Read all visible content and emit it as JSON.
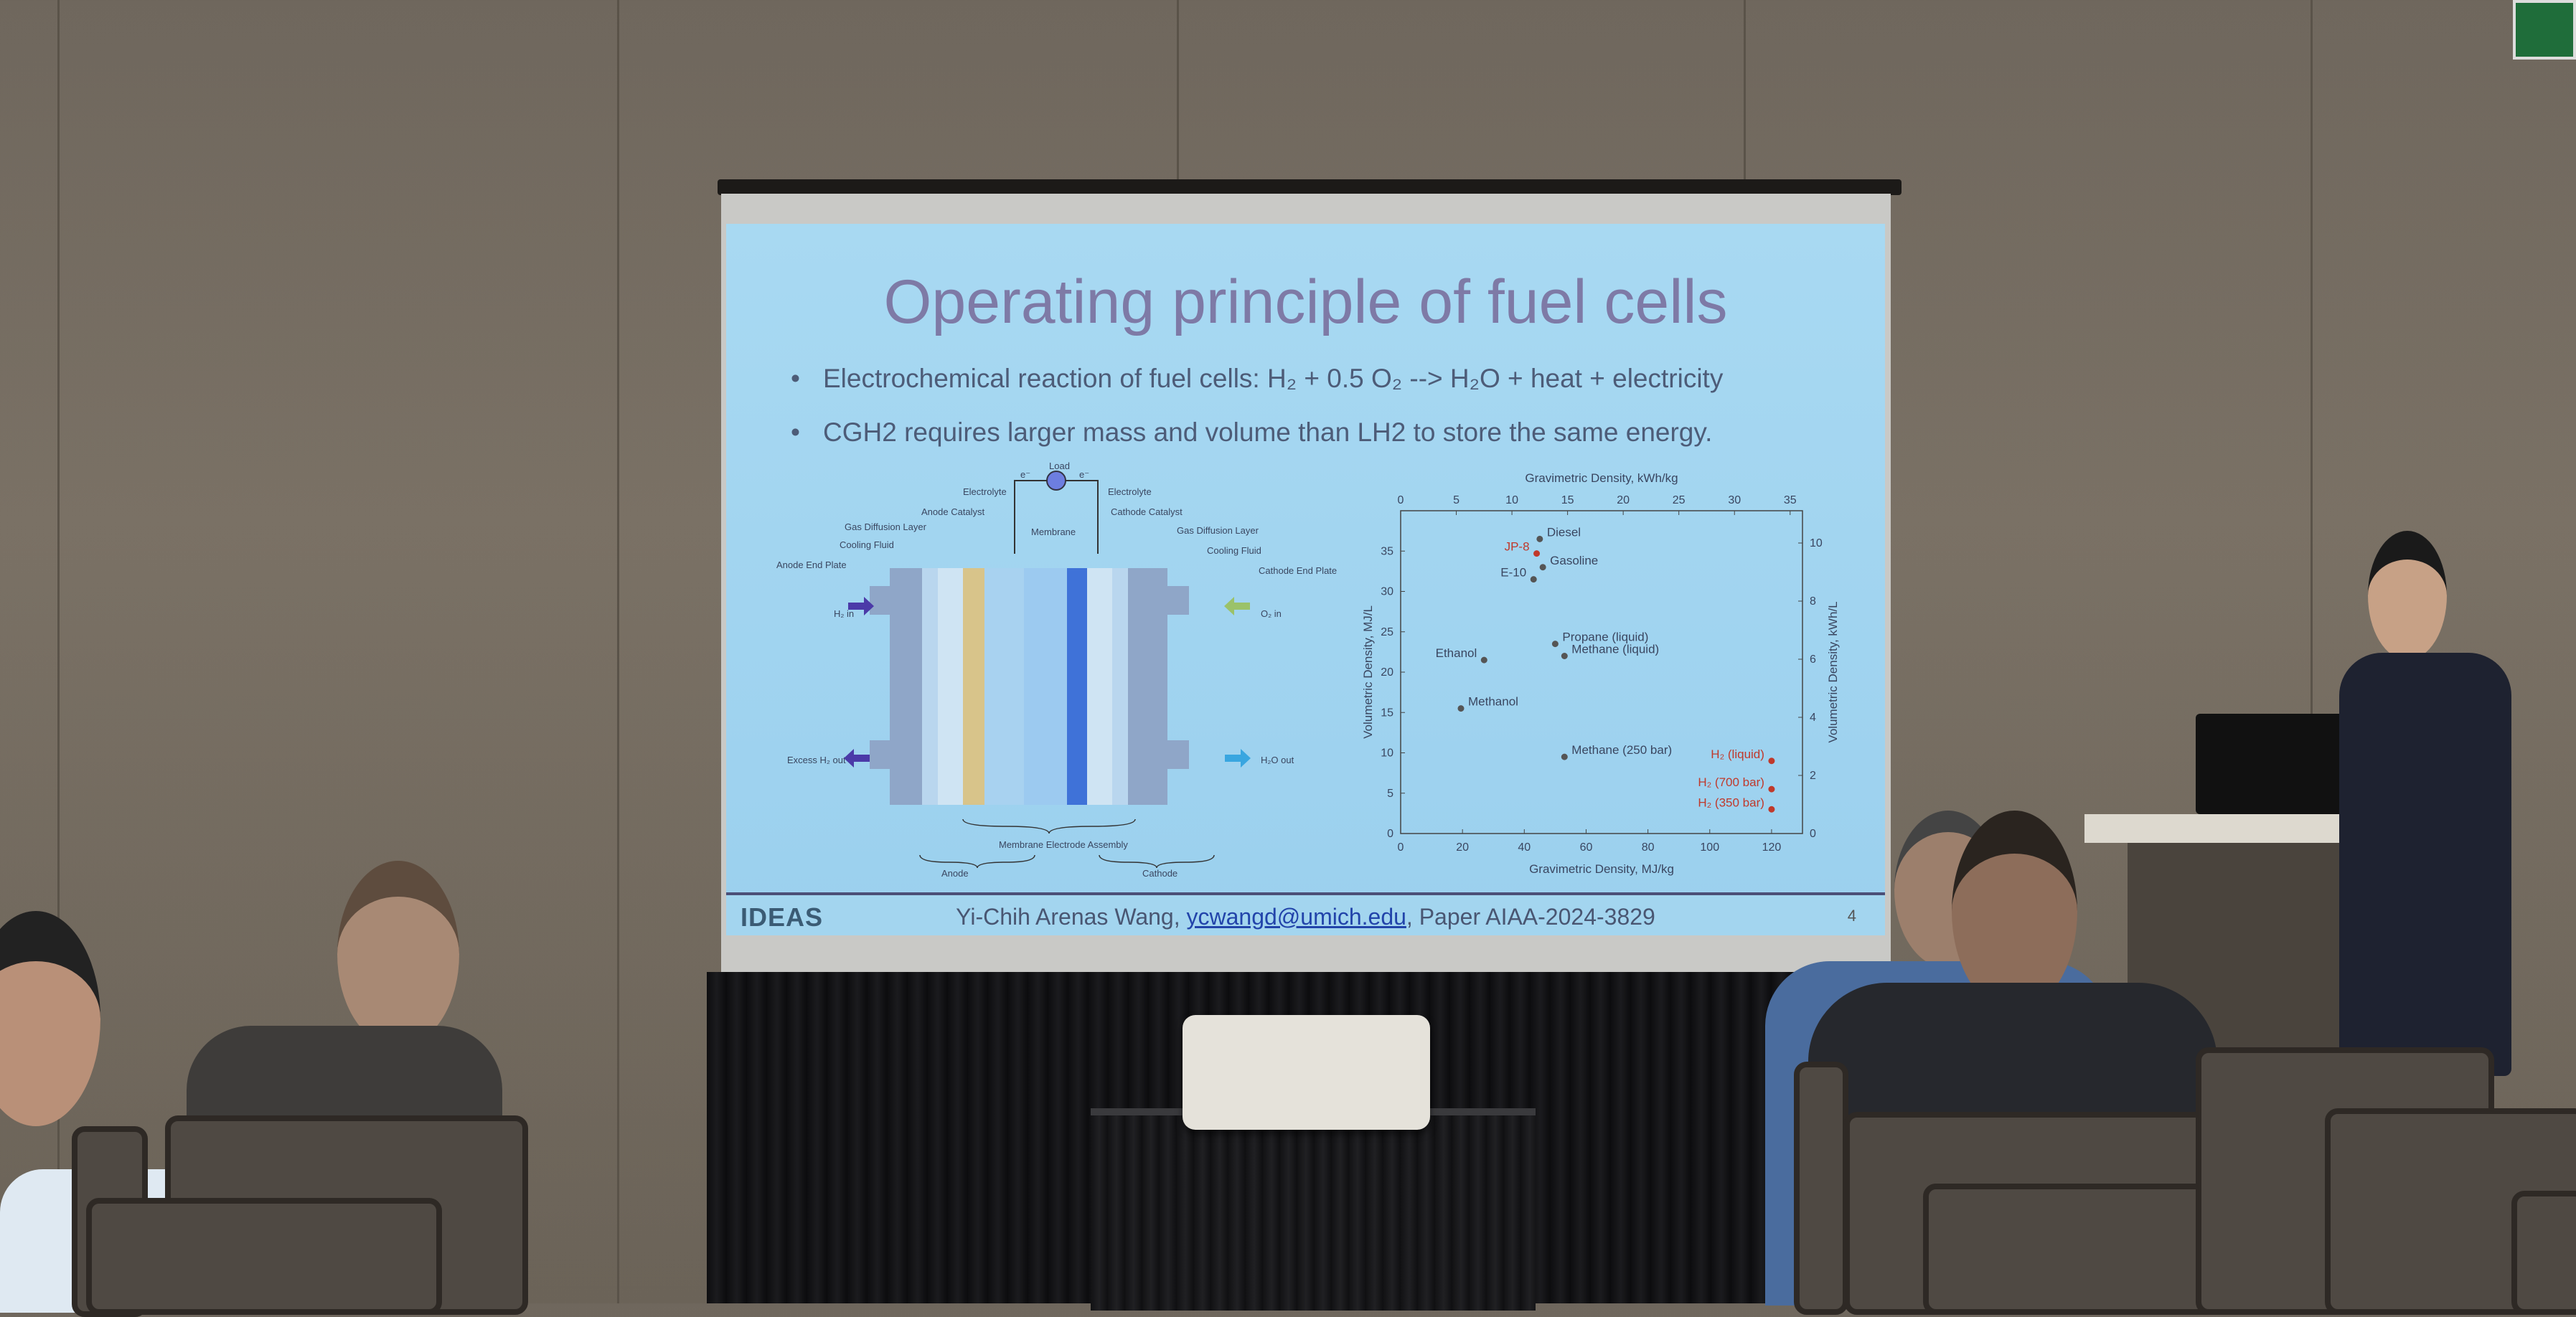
{
  "slide": {
    "title": "Operating principle of fuel cells",
    "bullet1": "Electrochemical reaction of fuel cells: H₂ + 0.5 O₂ --> H₂O + heat + electricity",
    "bullet2": "CGH2 requires larger mass and volume than LH2 to store the same energy.",
    "bullet_marker": "•"
  },
  "fuel_cell_diagram": {
    "labels": {
      "load": "Load",
      "electrolyte_left": "Electrolyte",
      "electrolyte_right": "Electrolyte",
      "anode_catalyst": "Anode Catalyst",
      "membrane": "Membrane",
      "cathode_catalyst": "Cathode Catalyst",
      "gdl_left": "Gas Diffusion Layer",
      "gdl_right": "Gas Diffusion Layer",
      "cooling_left": "Cooling Fluid",
      "cooling_right": "Cooling Fluid",
      "anode_end_plate": "Anode End Plate",
      "cathode_end_plate": "Cathode End Plate",
      "h2_in": "H₂ in",
      "o2_in": "O₂ in",
      "excess_h2_out": "Excess H₂ out",
      "h2o_out": "H₂O out",
      "mea": "Membrane Electrode Assembly",
      "anode": "Anode",
      "cathode": "Cathode",
      "electron_left": "e⁻",
      "electron_right": "e⁻"
    }
  },
  "chart_data": {
    "type": "scatter",
    "title": "",
    "xlabel": "Gravimetric Density, MJ/kg",
    "ylabel": "Volumetric Density, MJ/L",
    "x2label": "Gravimetric Density, kWh/kg",
    "y2label": "Volumetric Density, kWh/L",
    "xlim": [
      0,
      130
    ],
    "ylim": [
      0,
      40
    ],
    "xticks": [
      "0",
      "20",
      "40",
      "60",
      "80",
      "100",
      "120"
    ],
    "yticks": [
      "0",
      "5",
      "10",
      "15",
      "20",
      "25",
      "30",
      "35"
    ],
    "x2ticks": [
      "0",
      "5",
      "10",
      "15",
      "20",
      "25",
      "30",
      "35"
    ],
    "y2ticks": [
      "0",
      "2",
      "4",
      "6",
      "8",
      "10"
    ],
    "grid": false,
    "points": [
      {
        "label": "Diesel",
        "x": 45,
        "y": 36.5,
        "color": "#555555"
      },
      {
        "label": "JP-8",
        "x": 44,
        "y": 34.7,
        "color": "#c0392b"
      },
      {
        "label": "Gasoline",
        "x": 46,
        "y": 33,
        "color": "#555555"
      },
      {
        "label": "E-10",
        "x": 43,
        "y": 31.5,
        "color": "#555555"
      },
      {
        "label": "Propane (liquid)",
        "x": 50,
        "y": 23.5,
        "color": "#555555"
      },
      {
        "label": "Methane (liquid)",
        "x": 53,
        "y": 22,
        "color": "#555555"
      },
      {
        "label": "Ethanol",
        "x": 27,
        "y": 21.5,
        "color": "#555555"
      },
      {
        "label": "Methanol",
        "x": 19.5,
        "y": 15.5,
        "color": "#555555"
      },
      {
        "label": "Methane (250 bar)",
        "x": 53,
        "y": 9.5,
        "color": "#555555"
      },
      {
        "label": "H₂ (liquid)",
        "x": 120,
        "y": 9,
        "color": "#c0392b"
      },
      {
        "label": "H₂ (700 bar)",
        "x": 120,
        "y": 5.5,
        "color": "#c0392b"
      },
      {
        "label": "H₂ (350 bar)",
        "x": 120,
        "y": 3,
        "color": "#c0392b"
      }
    ]
  },
  "footer": {
    "logo": "IDEAS",
    "author": "Yi-Chih Arenas Wang, ",
    "email": "ycwangd@umich.edu",
    "paper": ", Paper AIAA-2024-3829",
    "page_number": "4"
  }
}
